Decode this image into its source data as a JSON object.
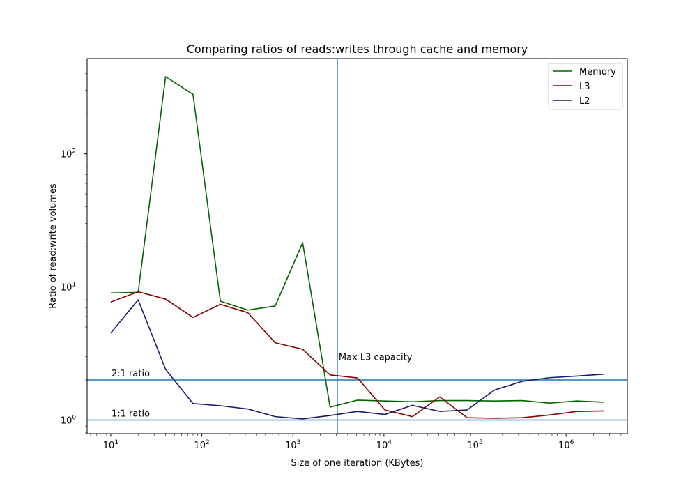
{
  "chart_data": {
    "type": "line",
    "title": "Comparing ratios of reads:writes through cache and memory",
    "xlabel": "Size of one iteration (KBytes)",
    "ylabel": "Ratio of read:write volumes",
    "xscale": "log",
    "yscale": "log",
    "xlim": [
      5.5,
      4700000
    ],
    "ylim": [
      0.79,
      520
    ],
    "x_ticks": [
      {
        "value": 10,
        "base": "10",
        "exp": "1"
      },
      {
        "value": 100,
        "base": "10",
        "exp": "2"
      },
      {
        "value": 1000,
        "base": "10",
        "exp": "3"
      },
      {
        "value": 10000,
        "base": "10",
        "exp": "4"
      },
      {
        "value": 100000,
        "base": "10",
        "exp": "5"
      },
      {
        "value": 1000000,
        "base": "10",
        "exp": "6"
      }
    ],
    "y_ticks": [
      {
        "value": 1,
        "base": "10",
        "exp": "0"
      },
      {
        "value": 10,
        "base": "10",
        "exp": "1"
      },
      {
        "value": 100,
        "base": "10",
        "exp": "2"
      }
    ],
    "grid": false,
    "legend_position": "upper right",
    "x": [
      10,
      20,
      40,
      80,
      160,
      320,
      640,
      1280,
      2560,
      5120,
      10240,
      20480,
      40960,
      81920,
      163840,
      327680,
      655360,
      1310720,
      2621440
    ],
    "series": [
      {
        "name": "Memory",
        "color": "#006400",
        "values": [
          9.0,
          9.1,
          380,
          280,
          7.8,
          6.7,
          7.2,
          21.5,
          1.25,
          1.41,
          1.39,
          1.37,
          1.4,
          1.4,
          1.39,
          1.4,
          1.34,
          1.39,
          1.36
        ]
      },
      {
        "name": "L3",
        "color": "#8b0000",
        "values": [
          7.7,
          9.2,
          8.1,
          5.9,
          7.4,
          6.4,
          3.8,
          3.4,
          2.18,
          2.07,
          1.19,
          1.06,
          1.49,
          1.04,
          1.03,
          1.04,
          1.09,
          1.16,
          1.17
        ]
      },
      {
        "name": "L2",
        "color": "#191970",
        "values": [
          4.5,
          8.0,
          2.4,
          1.33,
          1.28,
          1.21,
          1.06,
          1.02,
          1.08,
          1.16,
          1.1,
          1.29,
          1.16,
          1.19,
          1.68,
          1.95,
          2.08,
          2.14,
          2.21
        ]
      }
    ],
    "reference_lines": [
      {
        "orientation": "horizontal",
        "value": 2,
        "label": "2:1 ratio",
        "color": "#1f77b4"
      },
      {
        "orientation": "horizontal",
        "value": 1,
        "label": "1:1 ratio",
        "color": "#1f77b4"
      },
      {
        "orientation": "vertical",
        "value": 3072,
        "label": "Max L3 capacity",
        "color": "#1f77b4"
      }
    ]
  }
}
